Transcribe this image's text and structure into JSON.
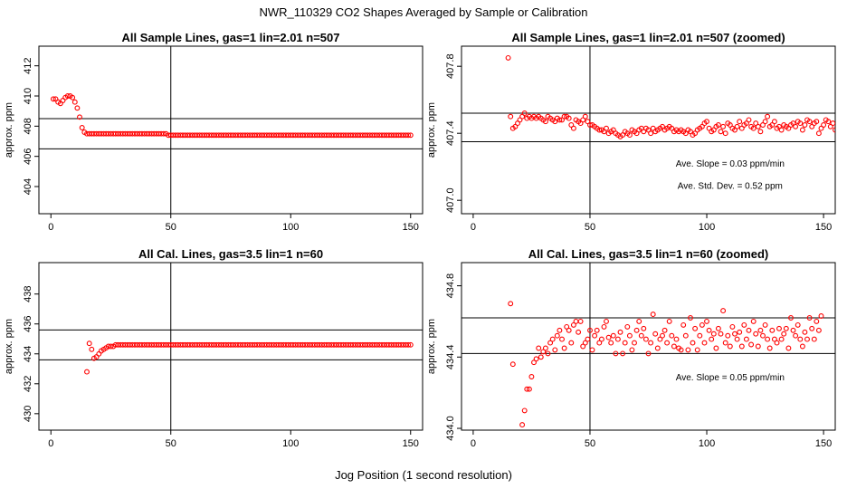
{
  "main_title": "NWR_110329  CO2 Shapes Averaged by Sample or Calibration",
  "x_axis_title": "Jog Position (1 second resolution)",
  "chart_data": [
    {
      "id": "p1",
      "type": "scatter",
      "title": "All Sample Lines, gas=1 lin=2.01 n=507",
      "xlabel": "",
      "ylabel": "approx. ppm",
      "xlim": [
        -5,
        155
      ],
      "ylim": [
        402.2,
        413.3
      ],
      "xticks": [
        0,
        50,
        100,
        150
      ],
      "yticks": [
        404,
        406,
        408,
        410,
        412
      ],
      "vline": 50,
      "hlines": [
        408.5,
        406.5
      ],
      "annotations": [],
      "series": [
        {
          "color": "#ff0000",
          "x_start": 1,
          "x_step": 1,
          "y": [
            409.8,
            409.8,
            409.6,
            409.5,
            409.7,
            409.9,
            410.0,
            410.0,
            409.9,
            409.6,
            409.2,
            408.6,
            407.9,
            407.6,
            407.5,
            407.5,
            407.5,
            407.5,
            407.5,
            407.5,
            407.5,
            407.5,
            407.5,
            407.5,
            407.5,
            407.5,
            407.5,
            407.5,
            407.5,
            407.5,
            407.5,
            407.5,
            407.5,
            407.5,
            407.5,
            407.5,
            407.5,
            407.5,
            407.5,
            407.5,
            407.5,
            407.5,
            407.5,
            407.5,
            407.5,
            407.5,
            407.5,
            407.5,
            407.4,
            407.4,
            407.4,
            407.4,
            407.4,
            407.4,
            407.4,
            407.4,
            407.4,
            407.4,
            407.4,
            407.4,
            407.4,
            407.4,
            407.4,
            407.4,
            407.4,
            407.4,
            407.4,
            407.4,
            407.4,
            407.4,
            407.4,
            407.4,
            407.4,
            407.4,
            407.4,
            407.4,
            407.4,
            407.4,
            407.4,
            407.4,
            407.4,
            407.4,
            407.4,
            407.4,
            407.4,
            407.4,
            407.4,
            407.4,
            407.4,
            407.4,
            407.4,
            407.4,
            407.4,
            407.4,
            407.4,
            407.4,
            407.4,
            407.4,
            407.4,
            407.4,
            407.4,
            407.4,
            407.4,
            407.4,
            407.4,
            407.4,
            407.4,
            407.4,
            407.4,
            407.4,
            407.4,
            407.4,
            407.4,
            407.4,
            407.4,
            407.4,
            407.4,
            407.4,
            407.4,
            407.4,
            407.4,
            407.4,
            407.4,
            407.4,
            407.4,
            407.4,
            407.4,
            407.4,
            407.4,
            407.4,
            407.4,
            407.4,
            407.4,
            407.4,
            407.4,
            407.4,
            407.4,
            407.4,
            407.4,
            407.4,
            407.4,
            407.4,
            407.4,
            407.4,
            407.4,
            407.4,
            407.4,
            407.4,
            407.4,
            407.4
          ]
        }
      ]
    },
    {
      "id": "p2",
      "type": "scatter",
      "title": "All Sample Lines, gas=1 lin=2.01 n=507 (zoomed)",
      "xlabel": "",
      "ylabel": "approx. ppm",
      "xlim": [
        -5,
        155
      ],
      "ylim": [
        406.92,
        407.92
      ],
      "xticks": [
        0,
        50,
        100,
        150
      ],
      "yticks": [
        407.0,
        407.4,
        407.8
      ],
      "ytick_labels": [
        "407.0",
        "407.4",
        "407.8"
      ],
      "vline": 50,
      "hlines": [
        407.52,
        407.35
      ],
      "annotations": [
        {
          "text": "Ave. Slope =  0.03  ppm/min",
          "x": 110,
          "y": 407.2
        },
        {
          "text": "Ave. Std. Dev. =  0.52  ppm",
          "x": 110,
          "y": 407.07
        }
      ],
      "series": [
        {
          "color": "#ff0000",
          "x_start": 15,
          "x_step": 1,
          "y": [
            407.85,
            407.5,
            407.43,
            407.44,
            407.46,
            407.48,
            407.5,
            407.52,
            407.49,
            407.5,
            407.49,
            407.5,
            407.49,
            407.5,
            407.49,
            407.48,
            407.47,
            407.5,
            407.49,
            407.48,
            407.47,
            407.49,
            407.48,
            407.48,
            407.5,
            407.5,
            407.49,
            407.45,
            407.43,
            407.48,
            407.47,
            407.46,
            407.48,
            407.5,
            407.47,
            407.45,
            407.45,
            407.44,
            407.43,
            407.42,
            407.42,
            407.41,
            407.43,
            407.4,
            407.41,
            407.42,
            407.4,
            407.39,
            407.38,
            407.39,
            407.41,
            407.4,
            407.39,
            407.42,
            407.41,
            407.4,
            407.42,
            407.43,
            407.41,
            407.43,
            407.42,
            407.4,
            407.43,
            407.41,
            407.42,
            407.43,
            407.44,
            407.42,
            407.43,
            407.44,
            407.43,
            407.41,
            407.42,
            407.41,
            407.42,
            407.41,
            407.4,
            407.42,
            407.41,
            407.39,
            407.4,
            407.42,
            407.43,
            407.44,
            407.46,
            407.47,
            407.43,
            407.41,
            407.42,
            407.44,
            407.45,
            407.41,
            407.44,
            407.4,
            407.46,
            407.45,
            407.43,
            407.42,
            407.44,
            407.47,
            407.43,
            407.45,
            407.46,
            407.48,
            407.44,
            407.43,
            407.46,
            407.44,
            407.41,
            407.45,
            407.47,
            407.5,
            407.44,
            407.45,
            407.47,
            407.43,
            407.44,
            407.42,
            407.45,
            407.44,
            407.43,
            407.45,
            407.46,
            407.44,
            407.47,
            407.46,
            407.42,
            407.45,
            407.48,
            407.47,
            407.44,
            407.46,
            407.47,
            407.4,
            407.43,
            407.45,
            407.48,
            407.47,
            407.44,
            407.46,
            407.42,
            407.45,
            407.4,
            407.45,
            407.47,
            407.42,
            407.43,
            407.46,
            407.44,
            407.49,
            407.44,
            407.45,
            407.48,
            407.42,
            407.46,
            407.48,
            407.48,
            407.48,
            407.46,
            407.42,
            407.48,
            407.48,
            407.47,
            407.48,
            407.47,
            407.46,
            407.48,
            407.49,
            407.47,
            407.46,
            407.48,
            407.47,
            407.46,
            407.47,
            407.48,
            407.47,
            407.46,
            407.47,
            407.48,
            407.47
          ]
        }
      ]
    },
    {
      "id": "p3",
      "type": "scatter",
      "title": "All Cal. Lines, gas=3.5 lin=1 n=60",
      "xlabel": "",
      "ylabel": "approx. ppm",
      "xlim": [
        -5,
        155
      ],
      "ylim": [
        428.9,
        440.1
      ],
      "xticks": [
        0,
        50,
        100,
        150
      ],
      "yticks": [
        430,
        432,
        434,
        436,
        438
      ],
      "vline": 50,
      "hlines": [
        435.6,
        433.6
      ],
      "annotations": [],
      "series": [
        {
          "color": "#ff0000",
          "x_start": 15,
          "x_step": 1,
          "y": [
            432.8,
            434.7,
            434.3,
            433.7,
            433.8,
            434.0,
            434.2,
            434.3,
            434.4,
            434.5,
            434.5,
            434.5,
            434.6,
            434.6,
            434.6,
            434.6,
            434.6,
            434.6,
            434.6,
            434.6,
            434.6,
            434.6,
            434.6,
            434.6,
            434.6,
            434.6,
            434.6,
            434.6,
            434.6,
            434.6,
            434.6,
            434.6,
            434.6,
            434.6,
            434.6,
            434.6,
            434.6,
            434.6,
            434.6,
            434.6,
            434.6,
            434.6,
            434.6,
            434.6,
            434.6,
            434.6,
            434.6,
            434.6,
            434.6,
            434.6,
            434.6,
            434.6,
            434.6,
            434.6,
            434.6,
            434.6,
            434.6,
            434.6,
            434.6,
            434.6,
            434.6,
            434.6,
            434.6,
            434.6,
            434.6,
            434.6,
            434.6,
            434.6,
            434.6,
            434.6,
            434.6,
            434.6,
            434.6,
            434.6,
            434.6,
            434.6,
            434.6,
            434.6,
            434.6,
            434.6,
            434.6,
            434.6,
            434.6,
            434.6,
            434.6,
            434.6,
            434.6,
            434.6,
            434.6,
            434.6,
            434.6,
            434.6,
            434.6,
            434.6,
            434.6,
            434.6,
            434.6,
            434.6,
            434.6,
            434.6,
            434.6,
            434.6,
            434.6,
            434.6,
            434.6,
            434.6,
            434.6,
            434.6,
            434.6,
            434.6,
            434.6,
            434.6,
            434.6,
            434.6,
            434.6,
            434.6,
            434.6,
            434.6,
            434.6,
            434.6,
            434.6,
            434.6,
            434.6,
            434.6,
            434.6,
            434.6,
            434.6,
            434.6,
            434.6,
            434.6,
            434.6,
            434.6,
            434.6,
            434.6,
            434.6,
            434.6
          ]
        }
      ]
    },
    {
      "id": "p4",
      "type": "scatter",
      "title": "All Cal. Lines, gas=3.5 lin=1 n=60 (zoomed)",
      "xlabel": "",
      "ylabel": "approx. ppm",
      "xlim": [
        -5,
        155
      ],
      "ylim": [
        433.99,
        434.93
      ],
      "xticks": [
        0,
        50,
        100,
        150
      ],
      "yticks": [
        434.0,
        434.4,
        434.8
      ],
      "ytick_labels": [
        "434.0",
        "434.4",
        "434.8"
      ],
      "vline": 50,
      "hlines": [
        434.62,
        434.42
      ],
      "annotations": [
        {
          "text": "Ave. Slope =  0.05  ppm/min",
          "x": 110,
          "y": 434.27
        }
      ],
      "series": [
        {
          "color": "#ff0000",
          "x_start": 16,
          "x_step": 1,
          "y": [
            434.7,
            434.36,
            null,
            null,
            null,
            434.02,
            434.1,
            434.22,
            434.22,
            434.29,
            434.37,
            434.39,
            434.45,
            434.4,
            434.43,
            434.45,
            434.42,
            434.48,
            434.5,
            434.44,
            434.52,
            434.55,
            434.5,
            434.45,
            434.57,
            434.55,
            434.48,
            434.58,
            434.6,
            434.54,
            434.6,
            434.46,
            434.48,
            434.5,
            434.55,
            434.44,
            434.52,
            434.55,
            434.48,
            434.5,
            434.57,
            434.6,
            434.51,
            434.48,
            434.52,
            434.42,
            434.5,
            434.54,
            434.42,
            434.48,
            434.57,
            434.52,
            434.44,
            434.48,
            434.55,
            434.6,
            434.52,
            434.56,
            434.5,
            434.42,
            434.48,
            434.64,
            434.53,
            434.45,
            434.5,
            434.52,
            434.55,
            434.48,
            434.6,
            434.52,
            434.46,
            434.5,
            434.45,
            434.44,
            434.58,
            434.52,
            434.44,
            434.62,
            434.48,
            434.56,
            434.44,
            434.52,
            434.58,
            434.48,
            434.6,
            434.55,
            434.5,
            434.53,
            434.45,
            434.56,
            434.53,
            434.66,
            434.48,
            434.52,
            434.46,
            434.57,
            434.53,
            434.5,
            434.54,
            434.46,
            434.58,
            434.5,
            434.55,
            434.47,
            434.6,
            434.53,
            434.46,
            434.55,
            434.52,
            434.58,
            434.5,
            434.45,
            434.55,
            434.5,
            434.48,
            434.56,
            434.5,
            434.53,
            434.56,
            434.45,
            434.62,
            434.55,
            434.52,
            434.58,
            434.5,
            434.46,
            434.54,
            434.5,
            434.62,
            434.56,
            434.5,
            434.6,
            434.55,
            434.63
          ]
        }
      ]
    }
  ]
}
